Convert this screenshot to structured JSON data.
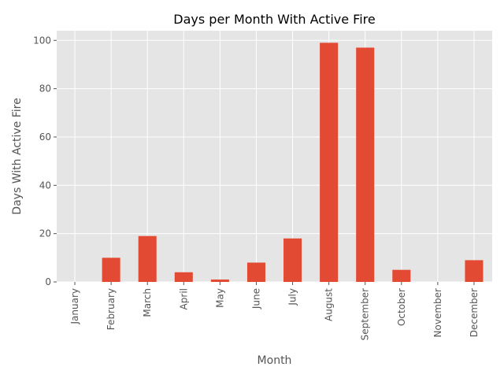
{
  "chart_data": {
    "type": "bar",
    "title": "Days per Month With Active Fire",
    "xlabel": "Month",
    "ylabel": "Days With Active Fire",
    "categories": [
      "January",
      "February",
      "March",
      "April",
      "May",
      "June",
      "July",
      "August",
      "September",
      "October",
      "November",
      "December"
    ],
    "values": [
      0,
      10,
      19,
      4,
      1,
      8,
      18,
      99,
      97,
      5,
      0,
      9
    ],
    "ylim": [
      0,
      104
    ],
    "yticks": [
      0,
      20,
      40,
      60,
      80,
      100
    ],
    "grid": true,
    "legend": "none",
    "colors": {
      "bar": "#E24A33",
      "background": "#E5E5E5",
      "grid": "#FFFFFF",
      "tick": "#555555"
    }
  }
}
